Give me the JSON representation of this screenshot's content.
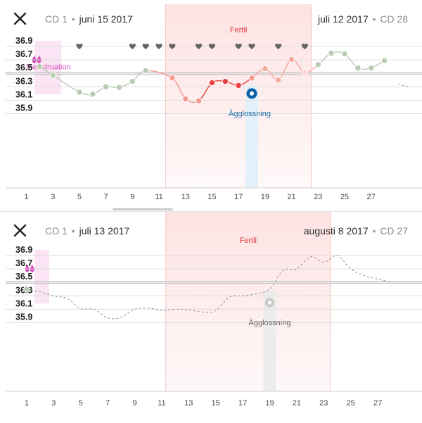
{
  "colors": {
    "fertile_band": "#fde3e3",
    "menstruation_band": "#fbe4f4",
    "menstruation_text": "#d24fb8",
    "ovulation_band": "#e3f0fb",
    "ovulation_text": "#1d6fa5",
    "ovulation_grey_band": "#ececec",
    "fertile_text": "#e0393e",
    "normal_point": "#b9ccb3",
    "heart": "#666666",
    "ovulation_marker": "#0b62a4"
  },
  "charts": [
    {
      "header": {
        "cd_label": "CD 1",
        "start_date": "juni 15 2017",
        "end_date": "juli 12 2017",
        "end_cd": "CD 28"
      },
      "chart_data": {
        "type": "line",
        "ylim": [
          35.8,
          37.0
        ],
        "yticks": [
          "35.9",
          "36.1",
          "36.3",
          "36.5",
          "36.7",
          "36.9"
        ],
        "xticks": [
          "1",
          "3",
          "5",
          "7",
          "9",
          "11",
          "13",
          "15",
          "17",
          "19",
          "21",
          "23",
          "25",
          "27"
        ],
        "coverline": 36.5,
        "fertile_label": "Fertil",
        "fertile_days": [
          11.5,
          22.5
        ],
        "menstruation_label": "Menstruation",
        "ovulation_label": "Ägglossning",
        "ovulation_day": 18,
        "heart_days": [
          5,
          9,
          10,
          11,
          12,
          14,
          15,
          17,
          18,
          20,
          22
        ],
        "points": [
          {
            "day": 2,
            "temp": 36.6,
            "style": "normal"
          },
          {
            "day": 3,
            "temp": 36.47,
            "style": "normal"
          },
          {
            "day": 5,
            "temp": 36.22,
            "style": "normal"
          },
          {
            "day": 6,
            "temp": 36.19,
            "style": "normal"
          },
          {
            "day": 7,
            "temp": 36.3,
            "style": "normal"
          },
          {
            "day": 8,
            "temp": 36.29,
            "style": "normal"
          },
          {
            "day": 9,
            "temp": 36.38,
            "style": "normal"
          },
          {
            "day": 10,
            "temp": 36.54,
            "style": "normal"
          },
          {
            "day": 12,
            "temp": 36.43,
            "style": "f1"
          },
          {
            "day": 13,
            "temp": 36.12,
            "style": "f1"
          },
          {
            "day": 14,
            "temp": 36.09,
            "style": "f1"
          },
          {
            "day": 15,
            "temp": 36.36,
            "style": "f2"
          },
          {
            "day": 16,
            "temp": 36.38,
            "style": "f2"
          },
          {
            "day": 17,
            "temp": 36.32,
            "style": "f2"
          },
          {
            "day": 18,
            "temp": 36.43,
            "style": "f1"
          },
          {
            "day": 19,
            "temp": 36.57,
            "style": "f3"
          },
          {
            "day": 20,
            "temp": 36.4,
            "style": "f3"
          },
          {
            "day": 21,
            "temp": 36.71,
            "style": "f3"
          },
          {
            "day": 22,
            "temp": 36.51,
            "style": "f4"
          },
          {
            "day": 23,
            "temp": 36.63,
            "style": "normal"
          },
          {
            "day": 24,
            "temp": 36.8,
            "style": "normal"
          },
          {
            "day": 25,
            "temp": 36.79,
            "style": "normal"
          },
          {
            "day": 26,
            "temp": 36.58,
            "style": "normal"
          },
          {
            "day": 27,
            "temp": 36.58,
            "style": "normal"
          },
          {
            "day": 28,
            "temp": 36.69,
            "style": "normal"
          }
        ],
        "trailing_dashed": [
          {
            "day": 29,
            "temp": 36.34
          },
          {
            "day": 29.8,
            "temp": 36.3
          }
        ]
      }
    },
    {
      "header": {
        "cd_label": "CD 1",
        "start_date": "juli 13 2017",
        "end_date": "augusti 8 2017",
        "end_cd": "CD 27"
      },
      "chart_data": {
        "type": "line",
        "ylim": [
          35.8,
          37.0
        ],
        "yticks": [
          "35.9",
          "36.1",
          "36.3",
          "36.5",
          "36.7",
          "36.9"
        ],
        "xticks": [
          "1",
          "3",
          "5",
          "7",
          "9",
          "11",
          "13",
          "15",
          "17",
          "19",
          "21",
          "23",
          "25",
          "27"
        ],
        "coverline": 36.5,
        "fertile_label": "Fertil",
        "fertile_days": [
          11.3,
          23.5
        ],
        "menstruation_label": "",
        "ovulation_label": "Ägglossning",
        "ovulation_day": 19,
        "heart_days": [],
        "points": [
          {
            "day": 1,
            "temp": 36.4,
            "style": "normal"
          }
        ],
        "dashed_curve": [
          {
            "day": 1,
            "temp": 36.4
          },
          {
            "day": 2,
            "temp": 36.36
          },
          {
            "day": 3,
            "temp": 36.3
          },
          {
            "day": 4,
            "temp": 36.26
          },
          {
            "day": 5,
            "temp": 36.11
          },
          {
            "day": 6,
            "temp": 36.1
          },
          {
            "day": 7,
            "temp": 35.97
          },
          {
            "day": 8,
            "temp": 35.98
          },
          {
            "day": 9,
            "temp": 36.1
          },
          {
            "day": 10,
            "temp": 36.12
          },
          {
            "day": 11,
            "temp": 36.08
          },
          {
            "day": 12,
            "temp": 36.1
          },
          {
            "day": 13,
            "temp": 36.09
          },
          {
            "day": 14,
            "temp": 36.06
          },
          {
            "day": 15,
            "temp": 36.08
          },
          {
            "day": 16,
            "temp": 36.28
          },
          {
            "day": 17,
            "temp": 36.3
          },
          {
            "day": 18,
            "temp": 36.33
          },
          {
            "day": 19,
            "temp": 36.4
          },
          {
            "day": 20,
            "temp": 36.68
          },
          {
            "day": 21,
            "temp": 36.7
          },
          {
            "day": 22,
            "temp": 36.88
          },
          {
            "day": 23,
            "temp": 36.8
          },
          {
            "day": 24,
            "temp": 36.9
          },
          {
            "day": 25,
            "temp": 36.7
          },
          {
            "day": 26,
            "temp": 36.6
          },
          {
            "day": 27,
            "temp": 36.55
          },
          {
            "day": 28,
            "temp": 36.5
          }
        ]
      }
    }
  ]
}
